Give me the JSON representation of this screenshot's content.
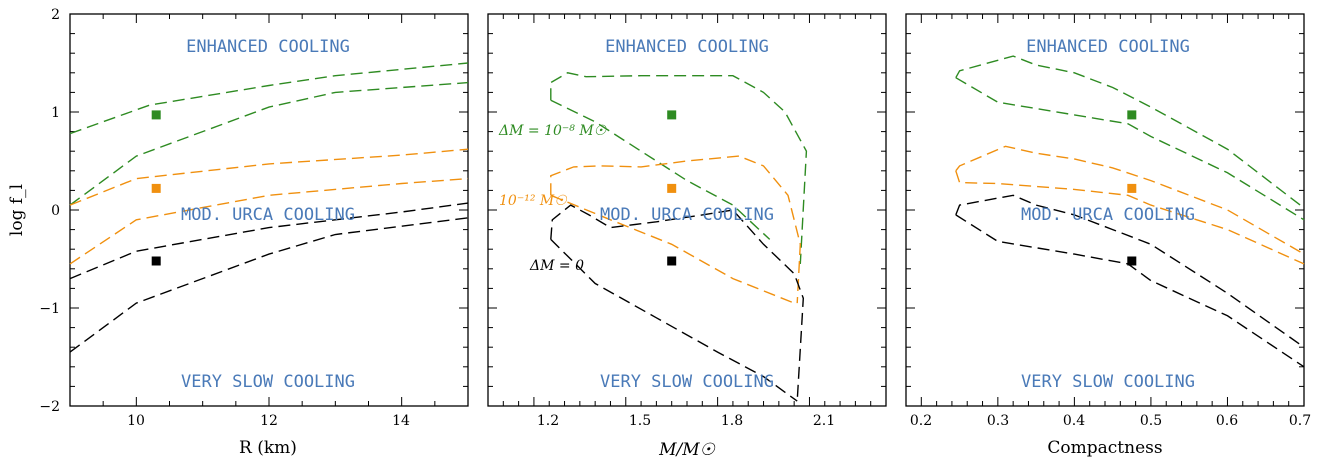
{
  "colors": {
    "green": "#2e8b22",
    "orange": "#f0900f",
    "black": "#000000",
    "region_text": "#4a7ab8"
  },
  "chart_data": [
    {
      "type": "line",
      "xlabel": "R (km)",
      "ylabel": "log f_l",
      "xlim": [
        9,
        15
      ],
      "ylim": [
        -2,
        2
      ],
      "xticks": [
        "10",
        "12",
        "14"
      ],
      "yticks": [
        "2",
        "1",
        "0",
        "−1",
        "−2"
      ],
      "region_labels": {
        "top": "ENHANCED COOLING",
        "middle": "MOD. URCA COOLING",
        "bottom": "VERY SLOW COOLING"
      },
      "annotations": [],
      "series": [
        {
          "color": "green",
          "x": [
            9,
            10.2,
            12,
            13,
            15
          ],
          "y": [
            0.78,
            1.07,
            1.27,
            1.37,
            1.5
          ]
        },
        {
          "color": "green",
          "x": [
            9,
            10,
            12,
            13,
            15
          ],
          "y": [
            0.05,
            0.55,
            1.05,
            1.2,
            1.3
          ]
        },
        {
          "color": "orange",
          "x": [
            9,
            10,
            12,
            14,
            15
          ],
          "y": [
            0.05,
            0.32,
            0.47,
            0.56,
            0.62
          ]
        },
        {
          "color": "orange",
          "x": [
            9,
            10,
            12,
            14,
            15
          ],
          "y": [
            -0.55,
            -0.1,
            0.15,
            0.27,
            0.32
          ]
        },
        {
          "color": "black",
          "x": [
            9,
            10,
            12,
            14,
            15
          ],
          "y": [
            -0.7,
            -0.42,
            -0.18,
            -0.02,
            0.07
          ]
        },
        {
          "color": "black",
          "x": [
            9,
            10,
            12,
            13,
            15
          ],
          "y": [
            -1.45,
            -0.95,
            -0.45,
            -0.25,
            -0.08
          ]
        }
      ],
      "points": [
        {
          "color": "green",
          "x": 10.3,
          "y": 0.97
        },
        {
          "color": "orange",
          "x": 10.3,
          "y": 0.22
        },
        {
          "color": "black",
          "x": 10.3,
          "y": -0.52
        }
      ]
    },
    {
      "type": "line",
      "xlabel": "M/M☉",
      "ylabel": "",
      "xlim": [
        1.05,
        2.35
      ],
      "ylim": [
        -2,
        2
      ],
      "xticks": [
        "1.2",
        "1.5",
        "1.8",
        "2.1"
      ],
      "yticks": [],
      "region_labels": {
        "top": "ENHANCED COOLING",
        "middle": "MOD. URCA COOLING",
        "bottom": "VERY SLOW COOLING"
      },
      "annotations": [
        {
          "text": "ΔM = 10⁻⁸ M☉",
          "color": "green",
          "x": 1.06,
          "y": 0.8
        },
        {
          "text": "10⁻¹² M☉",
          "color": "orange",
          "x": 1.06,
          "y": 0.08
        },
        {
          "text": "ΔM = 0",
          "color": "black",
          "x": 1.13,
          "y": -0.6
        }
      ],
      "series": [
        {
          "color": "green",
          "x": [
            1.255,
            1.255,
            1.31,
            1.37,
            1.55,
            1.85,
            1.95,
            2.02,
            2.09,
            2.07
          ],
          "y": [
            1.12,
            1.3,
            1.4,
            1.36,
            1.37,
            1.37,
            1.2,
            1.0,
            0.6,
            -0.55
          ]
        },
        {
          "color": "green",
          "x": [
            1.255,
            1.4,
            1.55,
            1.7,
            1.85,
            1.97
          ],
          "y": [
            1.12,
            0.9,
            0.6,
            0.3,
            0.05,
            -0.3
          ]
        },
        {
          "color": "orange",
          "x": [
            1.255,
            1.255,
            1.33,
            1.42,
            1.55,
            1.7,
            1.87,
            1.95,
            2.03,
            2.07,
            2.06
          ],
          "y": [
            0.15,
            0.35,
            0.44,
            0.45,
            0.44,
            0.5,
            0.55,
            0.45,
            0.15,
            -0.35,
            -0.95
          ]
        },
        {
          "color": "orange",
          "x": [
            1.255,
            1.45,
            1.65,
            1.85,
            2.05
          ],
          "y": [
            0.15,
            -0.1,
            -0.35,
            -0.7,
            -0.95
          ]
        },
        {
          "color": "black",
          "x": [
            1.255,
            1.26,
            1.32,
            1.38,
            1.45,
            1.6,
            1.75,
            1.85,
            1.95,
            2.05,
            2.08,
            2.06
          ],
          "y": [
            -0.3,
            -0.1,
            0.05,
            -0.05,
            -0.18,
            -0.12,
            -0.05,
            0.0,
            -0.35,
            -0.65,
            -0.9,
            -1.95
          ]
        },
        {
          "color": "black",
          "x": [
            1.255,
            1.4,
            1.6,
            1.8,
            1.95,
            2.06
          ],
          "y": [
            -0.3,
            -0.75,
            -1.1,
            -1.45,
            -1.7,
            -1.95
          ]
        }
      ],
      "points": [
        {
          "color": "green",
          "x": 1.65,
          "y": 0.97
        },
        {
          "color": "orange",
          "x": 1.65,
          "y": 0.22
        },
        {
          "color": "black",
          "x": 1.65,
          "y": -0.52
        }
      ]
    },
    {
      "type": "line",
      "xlabel": "Compactness",
      "ylabel": "",
      "xlim": [
        0.18,
        0.7
      ],
      "ylim": [
        -2,
        2
      ],
      "xticks": [
        "0.2",
        "0.3",
        "0.4",
        "0.5",
        "0.6",
        "0.7"
      ],
      "yticks": [],
      "region_labels": {
        "top": "ENHANCED COOLING",
        "middle": "MOD. URCA COOLING",
        "bottom": "VERY SLOW COOLING"
      },
      "annotations": [],
      "series": [
        {
          "color": "green",
          "x": [
            0.245,
            0.25,
            0.32,
            0.35,
            0.4,
            0.45,
            0.5,
            0.6,
            0.7
          ],
          "y": [
            1.35,
            1.42,
            1.57,
            1.48,
            1.4,
            1.25,
            1.05,
            0.62,
            0.02
          ]
        },
        {
          "color": "green",
          "x": [
            0.245,
            0.3,
            0.4,
            0.47,
            0.5,
            0.6,
            0.7
          ],
          "y": [
            1.35,
            1.1,
            0.97,
            0.88,
            0.75,
            0.38,
            -0.1
          ]
        },
        {
          "color": "orange",
          "x": [
            0.245,
            0.25,
            0.31,
            0.35,
            0.4,
            0.45,
            0.5,
            0.6,
            0.7
          ],
          "y": [
            0.4,
            0.45,
            0.65,
            0.58,
            0.52,
            0.43,
            0.3,
            0.0,
            -0.45
          ]
        },
        {
          "color": "orange",
          "x": [
            0.245,
            0.25,
            0.3,
            0.4,
            0.47,
            0.5,
            0.6,
            0.7
          ],
          "y": [
            0.4,
            0.28,
            0.27,
            0.21,
            0.15,
            0.05,
            -0.2,
            -0.55
          ]
        },
        {
          "color": "black",
          "x": [
            0.245,
            0.25,
            0.32,
            0.35,
            0.4,
            0.45,
            0.5,
            0.6,
            0.7
          ],
          "y": [
            -0.05,
            0.05,
            0.15,
            0.05,
            -0.05,
            -0.2,
            -0.35,
            -0.85,
            -1.4
          ]
        },
        {
          "color": "black",
          "x": [
            0.245,
            0.3,
            0.4,
            0.47,
            0.5,
            0.6,
            0.7
          ],
          "y": [
            -0.05,
            -0.32,
            -0.45,
            -0.55,
            -0.72,
            -1.08,
            -1.6
          ]
        }
      ],
      "points": [
        {
          "color": "green",
          "x": 0.475,
          "y": 0.97
        },
        {
          "color": "orange",
          "x": 0.475,
          "y": 0.22
        },
        {
          "color": "black",
          "x": 0.475,
          "y": -0.52
        }
      ]
    }
  ]
}
